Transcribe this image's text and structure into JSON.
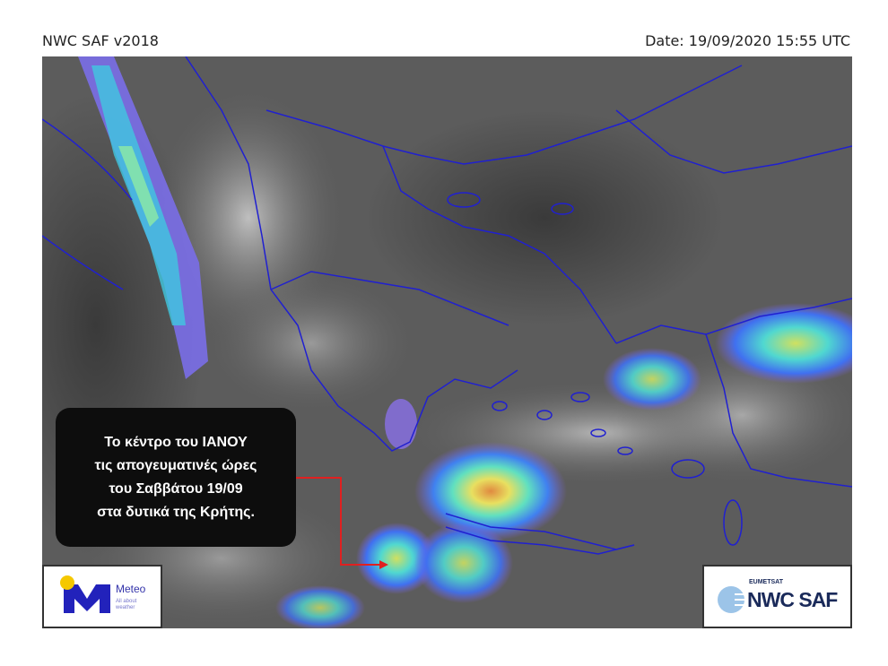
{
  "header": {
    "title": "NWC SAF v2018",
    "date": "Date: 19/09/2020 15:55 UTC"
  },
  "callout": {
    "lines": [
      "Το κέντρο του ΙΑΝΟΥ",
      "τις απογευματινές ώρες",
      "του Σαββάτου 19/09",
      "στα δυτικά της Κρήτης."
    ],
    "arrow_color": "#e02020"
  },
  "logos": {
    "meteo": {
      "name": "Meteo",
      "tagline": "All about weather",
      "brand_color": "#2222bb",
      "sun_color": "#f5c800"
    },
    "nwcsaf": {
      "org": "EUMETSAT",
      "name": "NWC SAF",
      "brand_color": "#1a2a5a"
    }
  },
  "map": {
    "coastline_color": "#2020d0"
  }
}
